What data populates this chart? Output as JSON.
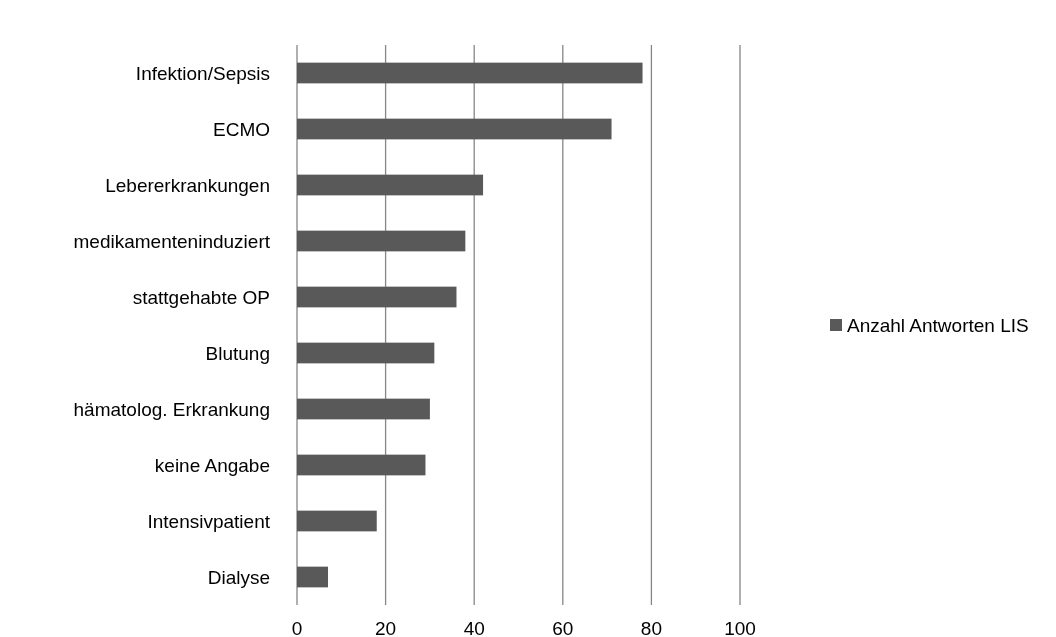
{
  "chart_data": {
    "type": "bar",
    "orientation": "horizontal",
    "categories": [
      "Infektion/Sepsis",
      "ECMO",
      "Lebererkrankungen",
      "medikamenteninduziert",
      "stattgehabte OP",
      "Blutung",
      "hämatolog. Erkrankung",
      "keine Angabe",
      "Intensivpatient",
      "Dialyse"
    ],
    "series": [
      {
        "name": "Anzahl Antworten LIS",
        "color": "#595959",
        "values": [
          78,
          71,
          42,
          38,
          36,
          31,
          30,
          29,
          18,
          7
        ]
      }
    ],
    "xlim": [
      0,
      100
    ],
    "xticks": [
      0,
      20,
      40,
      60,
      80,
      100
    ],
    "grid": "x",
    "legend": "right"
  }
}
